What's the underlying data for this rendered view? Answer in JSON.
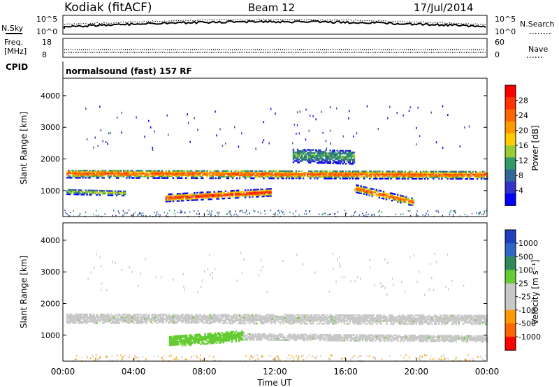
{
  "header": {
    "station": "Kodiak (fitACF)",
    "beam": "Beam 12",
    "date": "17/Jul/2014"
  },
  "params": {
    "nsky_label": "N.Sky",
    "nsky_ticks": [
      "10^5",
      "10^0"
    ],
    "nsearch_label": "N.Search",
    "nsearch_ticks": [
      "10^5",
      "10^0"
    ],
    "freq_label": [
      "Freq.",
      "[MHz]"
    ],
    "freq_ticks": [
      "18",
      "8"
    ],
    "nave_label": "Nave",
    "nave_ticks": [
      "60",
      "0"
    ],
    "cpid_label": "CPID",
    "cpid_text": "normalsound (fast) 157 RF"
  },
  "chart_data": [
    {
      "type": "heatmap",
      "panel": "power",
      "ylabel": "Slant Range [km]",
      "yticks": [
        "4000",
        "3000",
        "2000",
        "1000"
      ],
      "ylim": [
        180,
        4550
      ],
      "xlim": [
        0,
        24
      ],
      "xticks": [
        "00:00",
        "04:00",
        "08:00",
        "12:00",
        "16:00",
        "20:00",
        "00:00"
      ],
      "colorbar": {
        "label": "Power [dB]",
        "ticks": [
          "28",
          "24",
          "20",
          "16",
          "12",
          "8",
          "4"
        ],
        "colors": [
          "#ff0000",
          "#ff3300",
          "#ff6600",
          "#ff9900",
          "#ffcc00",
          "#99cc33",
          "#339966",
          "#336699",
          "#3333cc",
          "#0000ff"
        ]
      },
      "bands": [
        {
          "name": "main F-region",
          "t0": 0.2,
          "t1": 24.0,
          "r_start": 1520,
          "r_end": 1480,
          "width": 260,
          "level": 0.8
        },
        {
          "name": "E-region backscatter",
          "t0": 5.8,
          "t1": 11.8,
          "r_start": 750,
          "r_end": 930,
          "width": 230,
          "level": 0.9
        },
        {
          "name": "evening echoes",
          "t0": 16.5,
          "t1": 19.8,
          "r_start": 1050,
          "r_end": 620,
          "width": 230,
          "level": 0.8
        },
        {
          "name": "upper patch",
          "t0": 13.0,
          "t1": 16.5,
          "r_start": 2100,
          "r_end": 2050,
          "width": 450,
          "level": 0.35
        },
        {
          "name": "lower range band",
          "t0": 0.2,
          "t1": 3.5,
          "r_start": 950,
          "r_end": 900,
          "width": 160,
          "level": 0.45
        }
      ]
    },
    {
      "type": "heatmap",
      "panel": "velocity",
      "xlabel": "Time UT",
      "ylabel": "Slant Range [km]",
      "yticks": [
        "4000",
        "3000",
        "2000",
        "1000"
      ],
      "ylim": [
        180,
        4550
      ],
      "xlim": [
        0,
        24
      ],
      "xticks": [
        "00:00",
        "04:00",
        "08:00",
        "12:00",
        "16:00",
        "20:00",
        "00:00"
      ],
      "colorbar": {
        "label": "Velocity [m s⁻¹]",
        "ticks": [
          "1000",
          "500",
          "100",
          "25",
          "-25",
          "-100",
          "-500",
          "-1000"
        ],
        "colors": [
          "#1f3fbf",
          "#2f66c8",
          "#2e8b57",
          "#66cc33",
          "#c8c8c8",
          "#c8c8c8",
          "#ff9900",
          "#ff6600",
          "#ff0000"
        ]
      },
      "bands": [
        {
          "name": "ground scatter F",
          "t0": 0.2,
          "t1": 24.0,
          "r_start": 1520,
          "r_end": 1480,
          "width": 300,
          "color": "#c8c8c8"
        },
        {
          "name": "positive velocity region",
          "t0": 6.0,
          "t1": 10.2,
          "r_start": 780,
          "r_end": 960,
          "width": 320,
          "color": "#66cc33"
        },
        {
          "name": "ground scatter late",
          "t0": 10.2,
          "t1": 24.0,
          "r_start": 950,
          "r_end": 880,
          "width": 220,
          "color": "#c8c8c8"
        }
      ]
    }
  ]
}
